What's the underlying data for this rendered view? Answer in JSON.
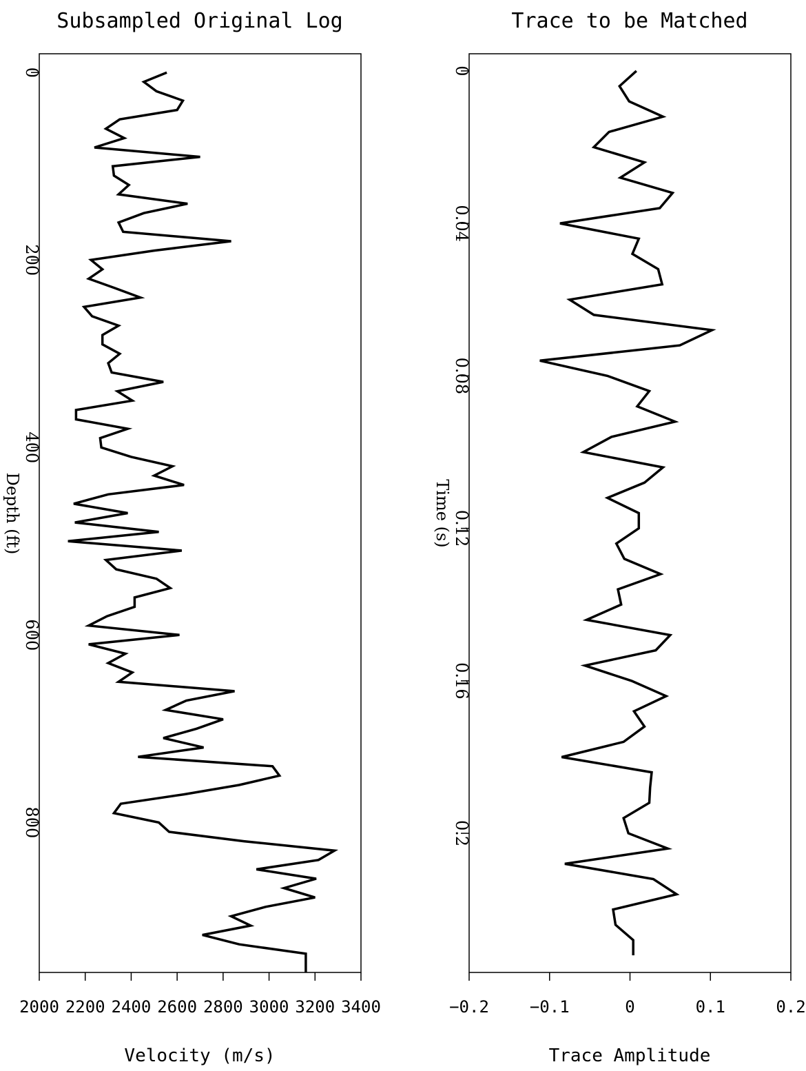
{
  "chart_data": [
    {
      "type": "line",
      "orientation": "vertical",
      "title": "Subsampled Original Log",
      "xlabel": "Velocity (m/s)",
      "ylabel": "Depth (ft)",
      "xlim": [
        2000,
        3400
      ],
      "ylim": [
        960,
        -20
      ],
      "xticks": [
        2000,
        2200,
        2400,
        2600,
        2800,
        3000,
        3200,
        3400
      ],
      "xtick_labels": [
        "2000",
        "2200",
        "2400",
        "2600",
        "2800",
        "3000",
        "3200",
        "3400"
      ],
      "yticks": [
        0,
        200,
        400,
        600,
        800
      ],
      "ytick_labels": [
        "0",
        "200",
        "400",
        "600",
        "800"
      ],
      "grid": false,
      "series": [
        {
          "y": [
            0,
            10,
            20,
            30,
            40,
            50,
            60,
            70,
            80,
            90,
            100,
            110,
            120,
            130,
            140,
            150,
            160,
            170,
            180,
            190,
            200,
            210,
            220,
            230,
            240,
            250,
            260,
            270,
            280,
            290,
            300,
            310,
            320,
            330,
            340,
            350,
            360,
            370,
            380,
            390,
            400,
            410,
            420,
            430,
            440,
            450,
            460,
            470,
            480,
            490,
            500,
            510,
            520,
            530,
            540,
            550,
            560,
            570,
            580,
            590,
            600,
            610,
            620,
            630,
            640,
            650,
            660,
            670,
            680,
            690,
            700,
            710,
            720,
            730,
            740,
            750,
            760,
            770,
            780,
            790,
            800,
            810,
            820,
            830,
            840,
            850,
            860,
            870,
            880,
            890,
            900,
            910,
            920,
            930,
            940,
            950,
            960
          ],
          "x": [
            2555,
            2455,
            2510,
            2625,
            2600,
            2350,
            2290,
            2370,
            2240,
            2700,
            2320,
            2325,
            2390,
            2345,
            2645,
            2455,
            2345,
            2365,
            2835,
            2500,
            2225,
            2275,
            2215,
            2330,
            2440,
            2195,
            2230,
            2345,
            2275,
            2275,
            2350,
            2300,
            2315,
            2540,
            2340,
            2405,
            2160,
            2160,
            2385,
            2265,
            2270,
            2400,
            2580,
            2500,
            2630,
            2300,
            2150,
            2385,
            2155,
            2520,
            2125,
            2620,
            2290,
            2335,
            2510,
            2570,
            2415,
            2415,
            2295,
            2215,
            2610,
            2215,
            2375,
            2300,
            2405,
            2345,
            2850,
            2640,
            2550,
            2800,
            2685,
            2540,
            2715,
            2430,
            3015,
            3045,
            2870,
            2630,
            2355,
            2325,
            2520,
            2565,
            2890,
            3285,
            3215,
            2945,
            3205,
            3065,
            3200,
            2985,
            2835,
            2920,
            2710,
            2870,
            3160,
            3160,
            3160
          ]
        }
      ]
    },
    {
      "type": "line",
      "orientation": "vertical",
      "title": "Trace to be Matched",
      "xlabel": "Trace Amplitude",
      "ylabel": "Time (s)",
      "xlim": [
        -0.2,
        0.2
      ],
      "ylim": [
        0.2365,
        -0.0045
      ],
      "xticks": [
        -0.2,
        -0.1,
        0,
        0.1,
        0.2
      ],
      "xtick_labels": [
        "−0.2",
        "−0.1",
        "0",
        "0.1",
        "0.2"
      ],
      "yticks": [
        0,
        0.04,
        0.08,
        0.12,
        0.16,
        0.2
      ],
      "ytick_labels": [
        "0",
        "0.04",
        "0.08",
        "0.12",
        "0.16",
        "0.2"
      ],
      "grid": false,
      "series": [
        {
          "y": [
            0,
            0.004,
            0.008,
            0.012,
            0.016,
            0.02,
            0.024,
            0.028,
            0.032,
            0.036,
            0.04,
            0.044,
            0.048,
            0.052,
            0.056,
            0.06,
            0.064,
            0.068,
            0.072,
            0.076,
            0.08,
            0.084,
            0.088,
            0.092,
            0.096,
            0.1,
            0.104,
            0.108,
            0.112,
            0.116,
            0.12,
            0.124,
            0.128,
            0.132,
            0.136,
            0.14,
            0.144,
            0.148,
            0.152,
            0.156,
            0.16,
            0.164,
            0.168,
            0.172,
            0.176,
            0.18,
            0.184,
            0.188,
            0.192,
            0.196,
            0.2,
            0.204,
            0.208,
            0.212,
            0.216,
            0.22,
            0.224,
            0.228,
            0.232
          ],
          "x": [
            0.008,
            -0.013,
            -0.001,
            0.041,
            -0.026,
            -0.045,
            0.018,
            -0.012,
            0.053,
            0.037,
            -0.087,
            0.011,
            0.003,
            0.035,
            0.04,
            -0.075,
            -0.045,
            0.102,
            0.062,
            -0.112,
            -0.028,
            0.024,
            0.009,
            0.056,
            -0.023,
            -0.058,
            0.041,
            0.018,
            -0.028,
            0.011,
            0.011,
            -0.017,
            -0.007,
            0.038,
            -0.015,
            -0.011,
            -0.054,
            0.05,
            0.032,
            -0.056,
            0.002,
            0.045,
            0.005,
            0.018,
            -0.008,
            -0.085,
            0.027,
            0.025,
            0.024,
            -0.008,
            -0.002,
            0.047,
            -0.081,
            0.029,
            0.058,
            -0.021,
            -0.018,
            0.004,
            0.004
          ]
        }
      ]
    }
  ]
}
